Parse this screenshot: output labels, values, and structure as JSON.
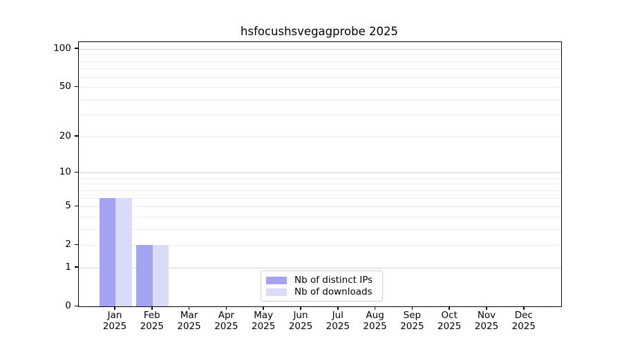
{
  "title": "hsfocushsvegagprobe 2025",
  "colors": {
    "distinct_ips": "#a3a3f2",
    "downloads": "#dadaf9",
    "grid_minor": "#ececec",
    "grid_major": "#d2d2d2",
    "axis": "#000000",
    "legend_border": "#cccccc",
    "background": "#ffffff"
  },
  "legend": {
    "items": [
      {
        "label": "Nb of distinct IPs"
      },
      {
        "label": "Nb of downloads"
      }
    ]
  },
  "chart_data": {
    "type": "bar",
    "title": "hsfocushsvegagprobe 2025",
    "categories": [
      "Jan",
      "Feb",
      "Mar",
      "Apr",
      "May",
      "Jun",
      "Jul",
      "Aug",
      "Sep",
      "Oct",
      "Nov",
      "Dec"
    ],
    "x_year_label": "2025",
    "series": [
      {
        "name": "Nb of distinct IPs",
        "color": "#a3a3f2",
        "values": [
          6,
          2,
          0,
          0,
          0,
          0,
          0,
          0,
          0,
          0,
          0,
          0
        ]
      },
      {
        "name": "Nb of downloads",
        "color": "#dadaf9",
        "values": [
          6,
          2,
          0,
          0,
          0,
          0,
          0,
          0,
          0,
          0,
          0,
          0
        ]
      }
    ],
    "y_scale": "log10(value+1)",
    "ylim": [
      0,
      113
    ],
    "y_tick_values": [
      100,
      50,
      20,
      10,
      5,
      2,
      1,
      0
    ],
    "grid_major_values": [
      100,
      10,
      1
    ],
    "grid_minor_values": [
      90,
      80,
      70,
      60,
      50,
      40,
      30,
      20,
      9,
      8,
      7,
      6,
      5,
      4,
      3,
      2
    ],
    "grid": "horizontal",
    "legend_position": "lower center"
  }
}
